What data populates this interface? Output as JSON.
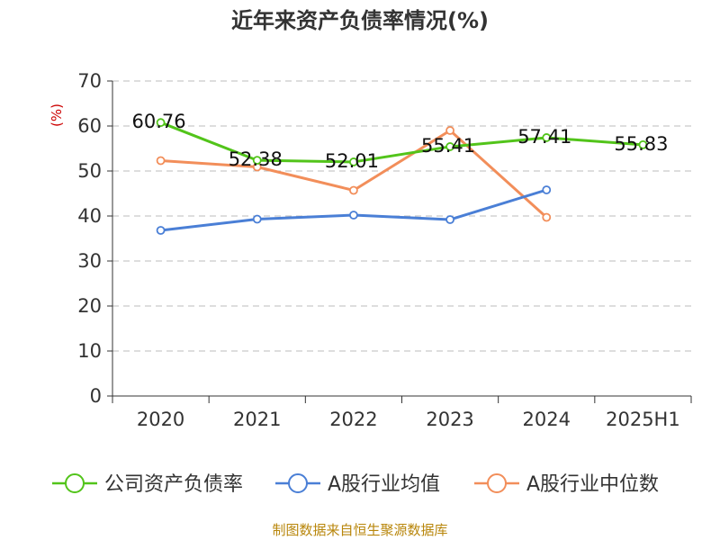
{
  "chart_data": {
    "type": "line",
    "title": "近年来资产负债率情况(%)",
    "ylabel": "(%)",
    "categories": [
      "2020",
      "2021",
      "2022",
      "2023",
      "2024",
      "2025H1"
    ],
    "ylim": [
      0,
      70
    ],
    "yticks": [
      0,
      10,
      20,
      30,
      40,
      50,
      60,
      70
    ],
    "grid": true,
    "legend_position": "bottom",
    "series": [
      {
        "name": "公司资产负债率",
        "color": "#52c41a",
        "values": [
          60.76,
          52.38,
          52.01,
          55.41,
          57.41,
          55.83
        ],
        "labels": [
          "60.76",
          "52.38",
          "52.01",
          "55.41",
          "57.41",
          "55.83"
        ]
      },
      {
        "name": "A股行业均值",
        "color": "#4a7fd6",
        "values": [
          36.8,
          39.3,
          40.2,
          39.2,
          45.8,
          null
        ]
      },
      {
        "name": "A股行业中位数",
        "color": "#f28e5a",
        "values": [
          52.3,
          50.9,
          45.7,
          59.0,
          39.7,
          null
        ]
      }
    ],
    "source": "制图数据来自恒生聚源数据库"
  }
}
